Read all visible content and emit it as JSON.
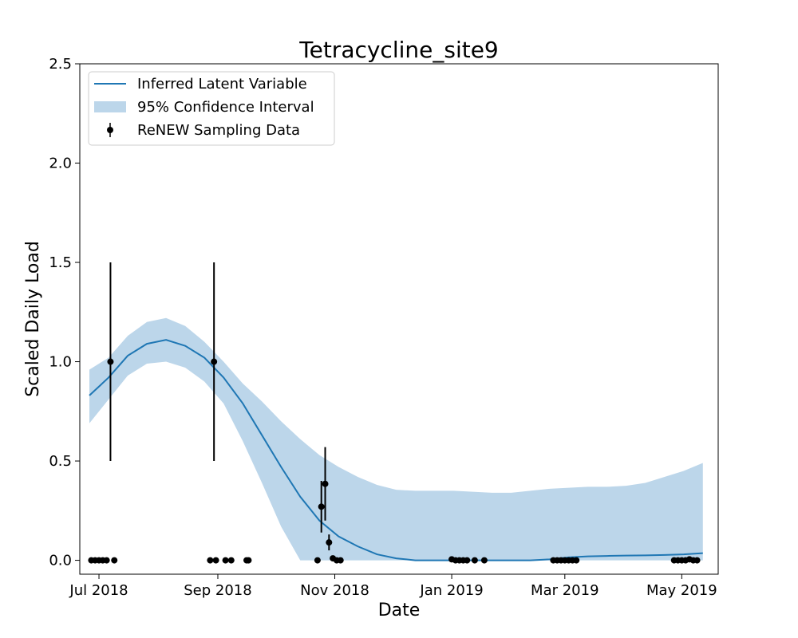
{
  "chart_data": {
    "type": "line",
    "title": "Tetracycline_site9",
    "xlabel": "Date",
    "ylabel": "Scaled Daily Load",
    "x_axis_type": "date",
    "xlim": [
      "2018-06-21",
      "2019-05-20"
    ],
    "ylim": [
      -0.07,
      2.5
    ],
    "x_ticks": [
      {
        "date": "2018-07-01",
        "label": "Jul 2018"
      },
      {
        "date": "2018-09-01",
        "label": "Sep 2018"
      },
      {
        "date": "2018-11-01",
        "label": "Nov 2018"
      },
      {
        "date": "2019-01-01",
        "label": "Jan 2019"
      },
      {
        "date": "2019-03-01",
        "label": "Mar 2019"
      },
      {
        "date": "2019-05-01",
        "label": "May 2019"
      }
    ],
    "y_ticks": [
      "0.0",
      "0.5",
      "1.0",
      "1.5",
      "2.0",
      "2.5"
    ],
    "grid": false,
    "legend": {
      "position": "top-left",
      "entries": [
        "Inferred Latent Variable",
        "95% Confidence Interval",
        "ReNEW Sampling Data"
      ]
    },
    "colors": {
      "line": "#1f77b4",
      "band": "#bcd6ea",
      "points": "#000000"
    },
    "latent": {
      "name": "Inferred Latent Variable",
      "x": [
        "2018-06-26",
        "2018-07-06",
        "2018-07-16",
        "2018-07-26",
        "2018-08-05",
        "2018-08-15",
        "2018-08-25",
        "2018-09-04",
        "2018-09-14",
        "2018-09-24",
        "2018-10-04",
        "2018-10-14",
        "2018-10-24",
        "2018-11-03",
        "2018-11-13",
        "2018-11-23",
        "2018-12-03",
        "2018-12-13",
        "2018-12-23",
        "2019-01-02",
        "2019-01-12",
        "2019-01-22",
        "2019-02-01",
        "2019-02-11",
        "2019-02-21",
        "2019-03-03",
        "2019-03-13",
        "2019-03-23",
        "2019-04-02",
        "2019-04-12",
        "2019-04-22",
        "2019-05-02",
        "2019-05-12"
      ],
      "y": [
        0.83,
        0.92,
        1.03,
        1.09,
        1.11,
        1.08,
        1.02,
        0.92,
        0.79,
        0.63,
        0.47,
        0.32,
        0.2,
        0.12,
        0.07,
        0.03,
        0.01,
        0.0,
        0.0,
        0.0,
        0.0,
        0.0,
        0.0,
        0.0,
        0.005,
        0.015,
        0.02,
        0.022,
        0.024,
        0.025,
        0.027,
        0.03,
        0.036
      ],
      "lower": [
        0.69,
        0.81,
        0.93,
        0.99,
        1.0,
        0.97,
        0.9,
        0.79,
        0.6,
        0.39,
        0.17,
        0.0,
        0.0,
        0.0,
        0.0,
        0.0,
        0.0,
        0.0,
        0.0,
        0.0,
        0.0,
        0.0,
        0.0,
        0.0,
        0.0,
        0.0,
        0.0,
        0.0,
        0.0,
        0.0,
        0.0,
        0.0,
        0.0
      ],
      "upper": [
        0.96,
        1.02,
        1.13,
        1.2,
        1.22,
        1.18,
        1.1,
        1.0,
        0.89,
        0.8,
        0.7,
        0.61,
        0.53,
        0.47,
        0.42,
        0.38,
        0.355,
        0.35,
        0.35,
        0.35,
        0.345,
        0.34,
        0.34,
        0.35,
        0.36,
        0.365,
        0.37,
        0.37,
        0.375,
        0.39,
        0.42,
        0.45,
        0.49
      ]
    },
    "samples": {
      "name": "ReNEW Sampling Data",
      "points": [
        {
          "x": "2018-06-27",
          "y": 0.0
        },
        {
          "x": "2018-06-29",
          "y": 0.0
        },
        {
          "x": "2018-07-01",
          "y": 0.0
        },
        {
          "x": "2018-07-03",
          "y": 0.0
        },
        {
          "x": "2018-07-05",
          "y": 0.0
        },
        {
          "x": "2018-07-07",
          "y": 1.0,
          "err_low": 0.5,
          "err_high": 1.5
        },
        {
          "x": "2018-07-09",
          "y": 0.0
        },
        {
          "x": "2018-08-28",
          "y": 0.0
        },
        {
          "x": "2018-08-31",
          "y": 0.0
        },
        {
          "x": "2018-08-30",
          "y": 1.0,
          "err_low": 0.5,
          "err_high": 1.5
        },
        {
          "x": "2018-09-05",
          "y": 0.0
        },
        {
          "x": "2018-09-08",
          "y": 0.0
        },
        {
          "x": "2018-09-16",
          "y": 0.0
        },
        {
          "x": "2018-09-17",
          "y": 0.0
        },
        {
          "x": "2018-10-23",
          "y": 0.0
        },
        {
          "x": "2018-10-25",
          "y": 0.27,
          "err_low": 0.14,
          "err_high": 0.4
        },
        {
          "x": "2018-10-27",
          "y": 0.385,
          "err_low": 0.2,
          "err_high": 0.57
        },
        {
          "x": "2018-10-29",
          "y": 0.09,
          "err_low": 0.05,
          "err_high": 0.13
        },
        {
          "x": "2018-10-31",
          "y": 0.01
        },
        {
          "x": "2018-11-02",
          "y": 0.0
        },
        {
          "x": "2018-11-04",
          "y": 0.0
        },
        {
          "x": "2019-01-01",
          "y": 0.005
        },
        {
          "x": "2019-01-03",
          "y": 0.0
        },
        {
          "x": "2019-01-05",
          "y": 0.0
        },
        {
          "x": "2019-01-07",
          "y": 0.0
        },
        {
          "x": "2019-01-09",
          "y": 0.0
        },
        {
          "x": "2019-01-13",
          "y": 0.0
        },
        {
          "x": "2019-01-18",
          "y": 0.0
        },
        {
          "x": "2019-02-23",
          "y": 0.0
        },
        {
          "x": "2019-02-25",
          "y": 0.0
        },
        {
          "x": "2019-02-27",
          "y": 0.0
        },
        {
          "x": "2019-03-01",
          "y": 0.0
        },
        {
          "x": "2019-03-03",
          "y": 0.0
        },
        {
          "x": "2019-03-05",
          "y": 0.0
        },
        {
          "x": "2019-03-07",
          "y": 0.0
        },
        {
          "x": "2019-04-27",
          "y": 0.0
        },
        {
          "x": "2019-04-29",
          "y": 0.0
        },
        {
          "x": "2019-05-01",
          "y": 0.0
        },
        {
          "x": "2019-05-03",
          "y": 0.0
        },
        {
          "x": "2019-05-05",
          "y": 0.005
        },
        {
          "x": "2019-05-07",
          "y": 0.0
        },
        {
          "x": "2019-05-09",
          "y": 0.0
        }
      ]
    }
  }
}
